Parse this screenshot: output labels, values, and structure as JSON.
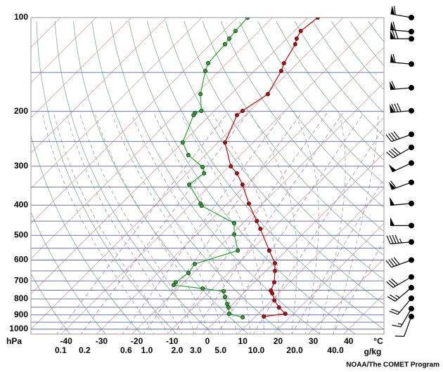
{
  "chart_data": {
    "type": "skewt",
    "ylabel": "hPa",
    "xlabel": "°C",
    "mixing_label": "g/kg",
    "credit": "NOAA/The COMET Program",
    "ylim": [
      1000,
      100
    ],
    "xlim": [
      -50,
      50
    ],
    "log_y": true,
    "yticks": [
      100,
      200,
      300,
      400,
      500,
      600,
      700,
      800,
      900,
      1000
    ],
    "isobars": [
      100,
      150,
      200,
      250,
      300,
      350,
      400,
      450,
      500,
      550,
      600,
      650,
      700,
      750,
      800,
      850,
      900,
      950,
      1000
    ],
    "xticks": [
      -40,
      -30,
      -20,
      -10,
      0,
      10,
      20,
      30,
      40
    ],
    "isotherms": [
      -130,
      -120,
      -110,
      -100,
      -90,
      -80,
      -70,
      -60,
      -50,
      -40,
      -30,
      -20,
      -10,
      0,
      10,
      20,
      30,
      40
    ],
    "dry_adiabats": [
      -40,
      -30,
      -20,
      -10,
      0,
      10,
      20,
      30,
      40,
      50,
      60,
      70,
      80,
      90,
      100,
      110,
      120,
      130,
      140,
      150,
      160,
      170,
      180,
      190,
      200
    ],
    "moist_adiabats": [
      -16,
      -12,
      -8,
      -4,
      0,
      4,
      8,
      12,
      16,
      20,
      24,
      28,
      32,
      36
    ],
    "mixing_ratios": [
      0.1,
      0.2,
      0.6,
      {
        "value": 1,
        "label": "1.0"
      },
      {
        "value": 2,
        "label": "2.0"
      },
      {
        "value": 3,
        "label": "3.0"
      },
      {
        "value": 5,
        "label": "5.0"
      },
      {
        "value": 10,
        "label": "10.0"
      },
      {
        "value": 20,
        "label": "20.0"
      },
      {
        "value": 40,
        "label": "40.0"
      }
    ],
    "series": [
      {
        "color": "#cc0000",
        "pressure": [
          100,
          110.4,
          116.8,
          121.8,
          140.1,
          148.3,
          176,
          199.3,
          205.6,
          251.7,
          300.2,
          316,
          343.6,
          395.4,
          450,
          476.4,
          559.5,
          614.2,
          650.4,
          706.9,
          751.8,
          767.5,
          808.5,
          851.6,
          892.4,
          911
        ],
        "values": [
          -57.2,
          -58.2,
          -57.2,
          -56,
          -53.8,
          -52.4,
          -49.6,
          -52,
          -52.4,
          -48,
          -39.6,
          -35.9,
          -31.1,
          -23.9,
          -16.7,
          -13.5,
          -4.8,
          0.4,
          2.6,
          5.6,
          7,
          8.2,
          10.8,
          14.1,
          17.7,
          12.4
        ]
      },
      {
        "color": "#22aa22",
        "pressure": [
          100,
          110.4,
          116.8,
          121.8,
          140.1,
          148.3,
          176,
          199.3,
          202.4,
          205.6,
          251.7,
          276.4,
          301.8,
          316,
          343.6,
          395.4,
          401.6,
          457.1,
          496.6,
          559.5,
          617.4,
          660.4,
          706.9,
          721.8,
          740.3,
          755.7,
          787.7,
          829.6,
          851.6,
          892.4,
          915.7
        ],
        "values": [
          -77.1,
          -76.7,
          -76.3,
          -75.9,
          -75.3,
          -73.9,
          -68.7,
          -63.7,
          -64.9,
          -64.7,
          -60,
          -54.8,
          -47.4,
          -45.2,
          -46.2,
          -37.6,
          -36.7,
          -22.5,
          -19.3,
          -13.7,
          -22.1,
          -21.3,
          -22.3,
          -22.1,
          -12.9,
          -6.2,
          -4.2,
          -1.6,
          -0.2,
          1.8,
          6.6
        ]
      }
    ],
    "winds": {
      "pressure": [
        100,
        111,
        117,
        141,
        168,
        199,
        237,
        261,
        293,
        338,
        395,
        465,
        525,
        600,
        680,
        736,
        796,
        859,
        911
      ],
      "speed": [
        60,
        60,
        70,
        60,
        60,
        80,
        40,
        40,
        50,
        60,
        50,
        50,
        45,
        40,
        30,
        25,
        20,
        15,
        10
      ],
      "direction": [
        280,
        275,
        270,
        275,
        265,
        265,
        250,
        240,
        245,
        250,
        265,
        270,
        265,
        250,
        240,
        230,
        220,
        210,
        200
      ]
    }
  }
}
